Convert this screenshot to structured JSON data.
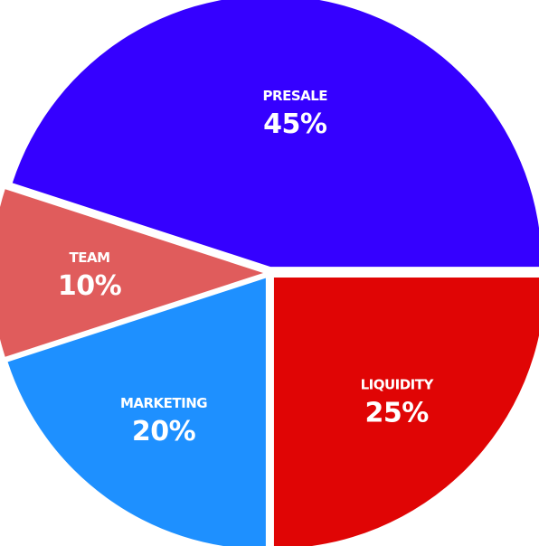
{
  "chart_data": {
    "type": "pie",
    "slices": [
      {
        "label": "PRESALE",
        "value": 45,
        "value_label": "45%",
        "color": "#3500ff"
      },
      {
        "label": "TEAM",
        "value": 10,
        "value_label": "10%",
        "color": "#e05c5c"
      },
      {
        "label": "MARKETING",
        "value": 20,
        "value_label": "20%",
        "color": "#1e90ff"
      },
      {
        "label": "LIQUIDITY",
        "value": 25,
        "value_label": "25%",
        "color": "#e00505"
      }
    ]
  }
}
